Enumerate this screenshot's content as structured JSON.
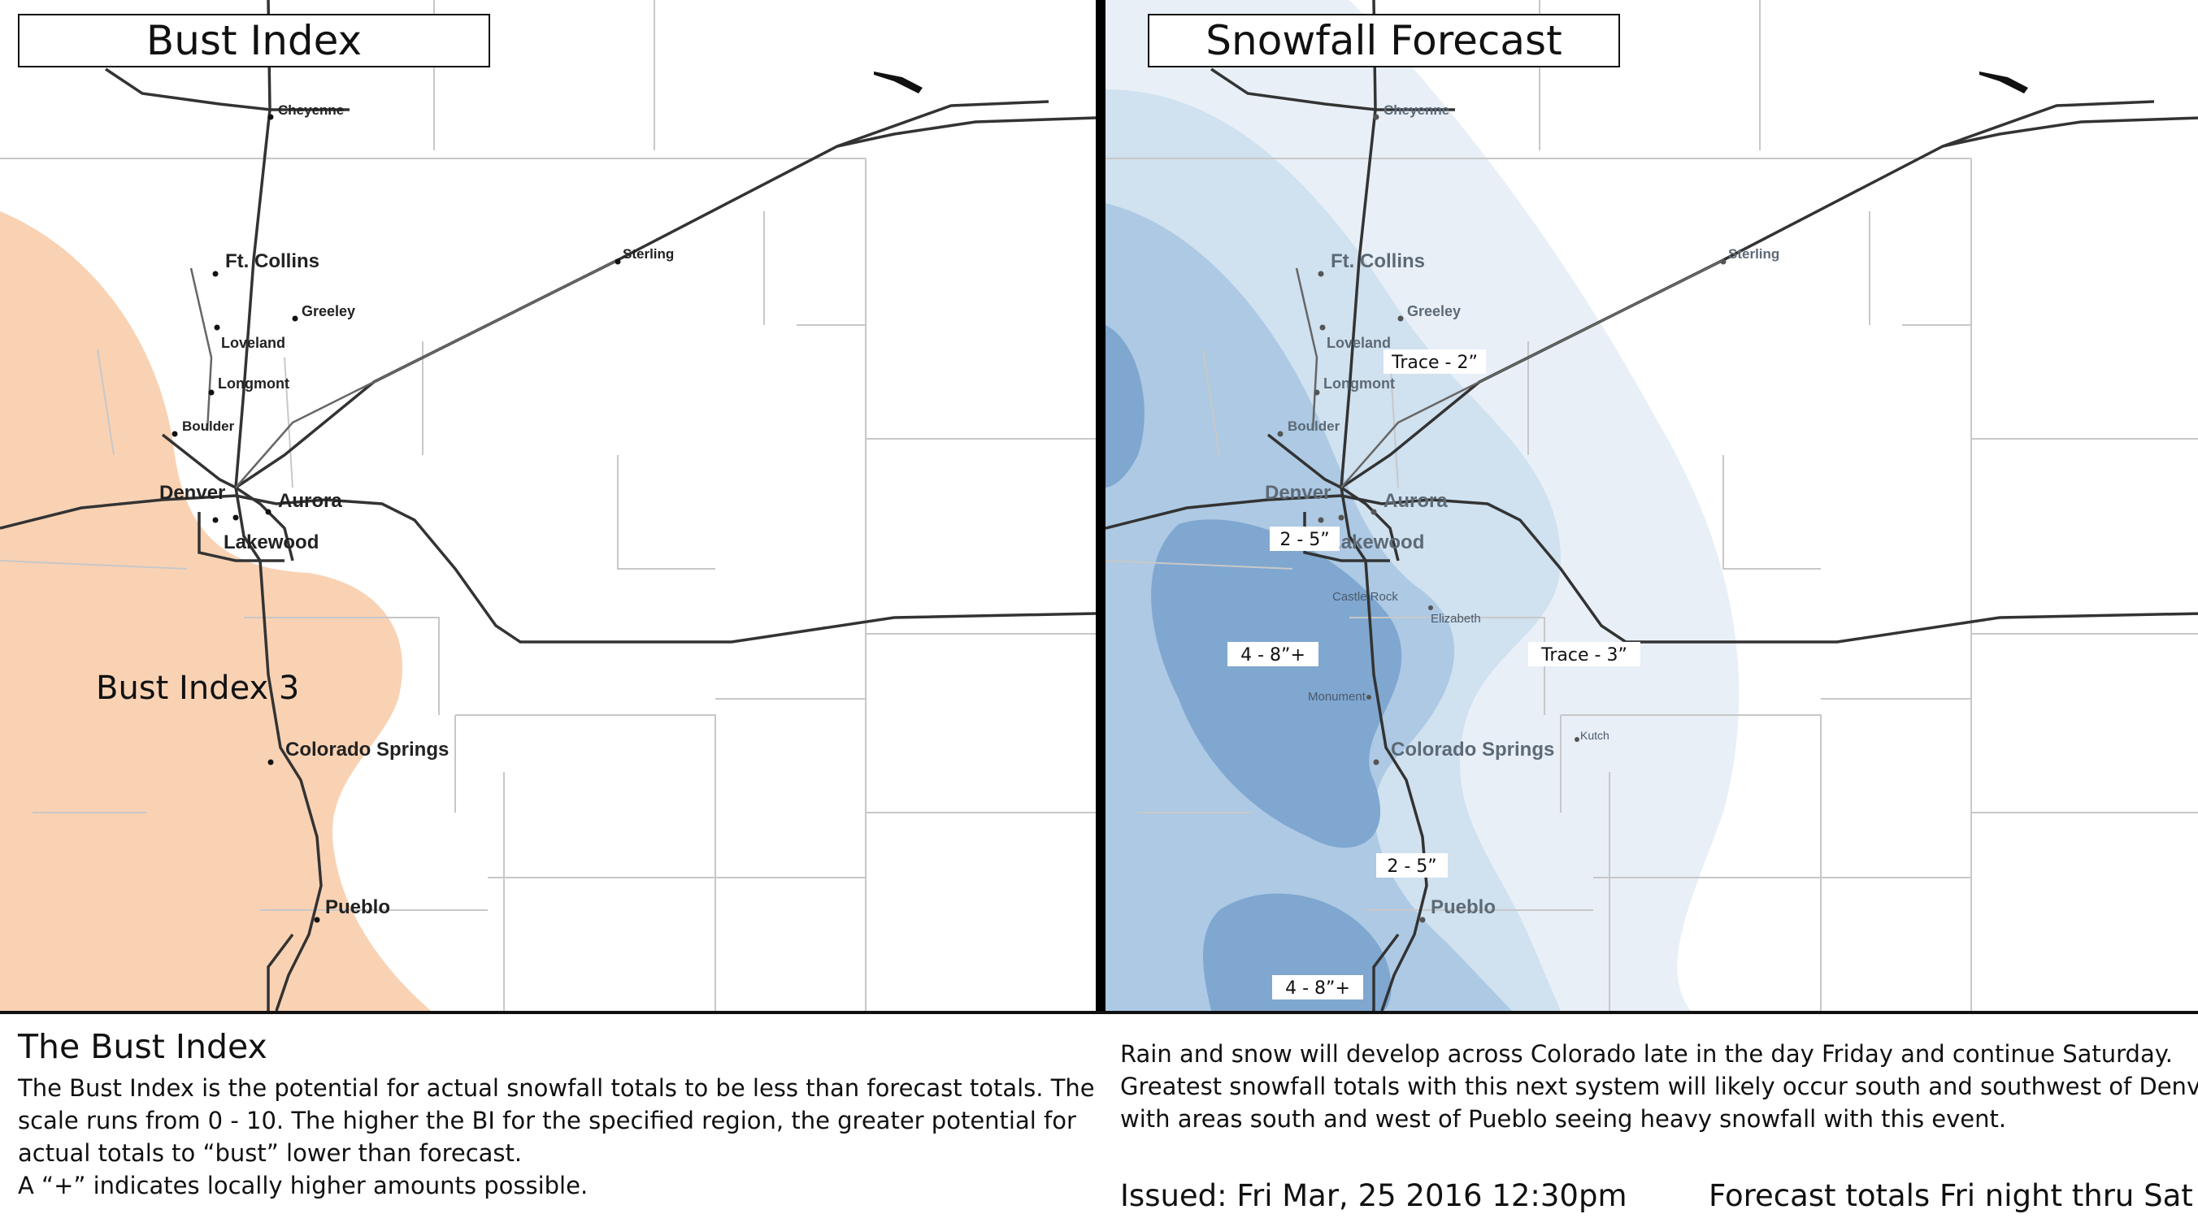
{
  "panels": {
    "left_title": "Bust Index",
    "right_title": "Snowfall Forecast"
  },
  "cities": {
    "cheyenne": "Cheyenne",
    "ft_collins": "Ft. Collins",
    "greeley": "Greeley",
    "loveland": "Loveland",
    "longmont": "Longmont",
    "boulder": "Boulder",
    "denver": "Denver",
    "aurora": "Aurora",
    "lakewood": "Lakewood",
    "sterling": "Sterling",
    "colorado_springs": "Colorado Springs",
    "pueblo": "Pueblo",
    "castle_rock": "Castle Rock",
    "elizabeth": "Elizabeth",
    "monument": "Monument",
    "kutch": "Kutch"
  },
  "bust_index": {
    "zone_label": "Bust Index 3",
    "zone_color": "#f9d2b4"
  },
  "snowfall": {
    "band_colors": [
      "#e8eff7",
      "#d0e1ef",
      "#adc9e3",
      "#7fa7d0"
    ],
    "labels": {
      "trace_2": "Trace - 2”",
      "two_five_a": "2 - 5”",
      "four_eight_a": "4 - 8”+",
      "trace_3": "Trace - 3”",
      "two_five_b": "2 - 5”",
      "four_eight_b": "4 - 8”+"
    }
  },
  "info": {
    "bi_heading": "The Bust Index",
    "bi_lines": [
      "The Bust Index is the potential for actual snowfall totals to be less than forecast totals. The",
      "scale runs from 0 - 10. The higher the BI for the specified region, the greater potential for",
      "actual totals to “bust” lower than forecast.",
      "A “+” indicates locally higher amounts possible."
    ],
    "forecast_lines": [
      "Rain and snow will develop across Colorado late in the day Friday and continue Saturday.",
      "Greatest snowfall totals with this next system will likely occur south and southwest of Denver,",
      "with areas south and west of Pueblo seeing heavy snowfall with this event."
    ],
    "issued": "Issued: Fri Mar, 25 2016 12:30pm",
    "totals_note": "Forecast totals Fri night thru Sat"
  }
}
